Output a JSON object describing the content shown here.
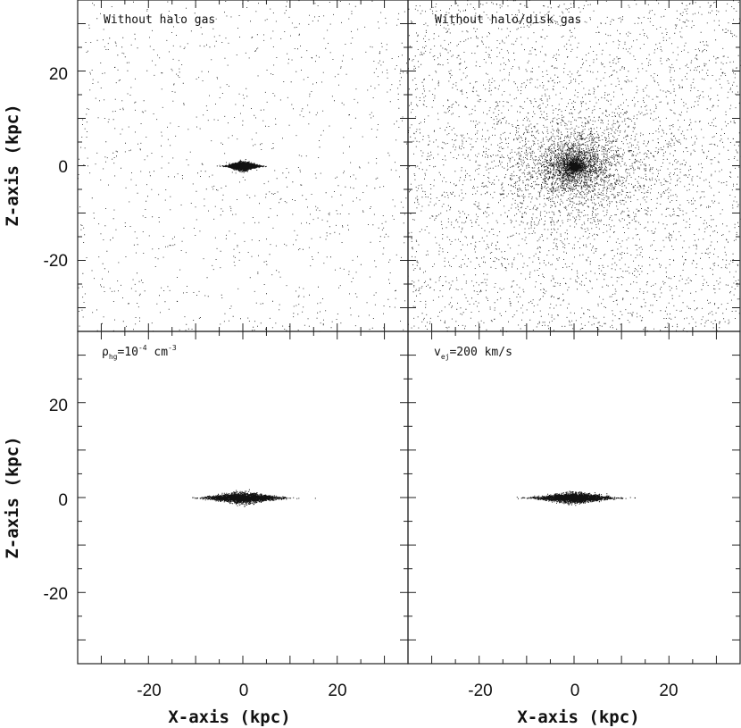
{
  "chart_data": [
    {
      "type": "scatter",
      "panel": "top-left",
      "label": "Without halo gas",
      "xlim": [
        -35,
        35
      ],
      "ylim": [
        -35,
        35
      ],
      "xlabel": "",
      "ylabel": "Z-axis (kpc)",
      "xticks": [],
      "yticks": [
        "20",
        "0",
        "-20"
      ],
      "distribution": {
        "disk_half_length": 3.5,
        "disk_half_height": 0.45,
        "background": "sparse-uniform",
        "halo": "none"
      }
    },
    {
      "type": "scatter",
      "panel": "top-right",
      "label": "Without halo/disk gas",
      "xlim": [
        -35,
        35
      ],
      "ylim": [
        -35,
        35
      ],
      "xlabel": "",
      "ylabel": "",
      "xticks": [],
      "yticks": [],
      "distribution": {
        "core_radius": 0.8,
        "background": "dense-uniform",
        "halo": "centrally-concentrated"
      }
    },
    {
      "type": "scatter",
      "panel": "bottom-left",
      "label": {
        "prefix": "ρ",
        "sub": "hg",
        "mid": "=10",
        "sup": "-4",
        "suffix": " cm",
        "sup2": "-3"
      },
      "xlim": [
        -35,
        35
      ],
      "ylim": [
        -35,
        35
      ],
      "xlabel": "X-axis (kpc)",
      "ylabel": "Z-axis (kpc)",
      "xticks": [
        "-20",
        "0",
        "20"
      ],
      "yticks": [
        "20",
        "0",
        "-20"
      ],
      "distribution": {
        "disk_half_length": 8.5,
        "disk_half_height": 0.55,
        "background": "none",
        "halo": "none"
      }
    },
    {
      "type": "scatter",
      "panel": "bottom-right",
      "label": {
        "prefix": "v",
        "sub": "ej",
        "mid": "=200 km/s"
      },
      "xlim": [
        -35,
        35
      ],
      "ylim": [
        -35,
        35
      ],
      "xlabel": "X-axis (kpc)",
      "ylabel": "",
      "xticks": [
        "-20",
        "0",
        "20"
      ],
      "yticks": [],
      "distribution": {
        "disk_half_length": 8.5,
        "disk_half_height": 0.55,
        "background": "none",
        "halo": "none"
      }
    }
  ],
  "colors": {
    "points": "#111111",
    "frame": "#222222"
  }
}
